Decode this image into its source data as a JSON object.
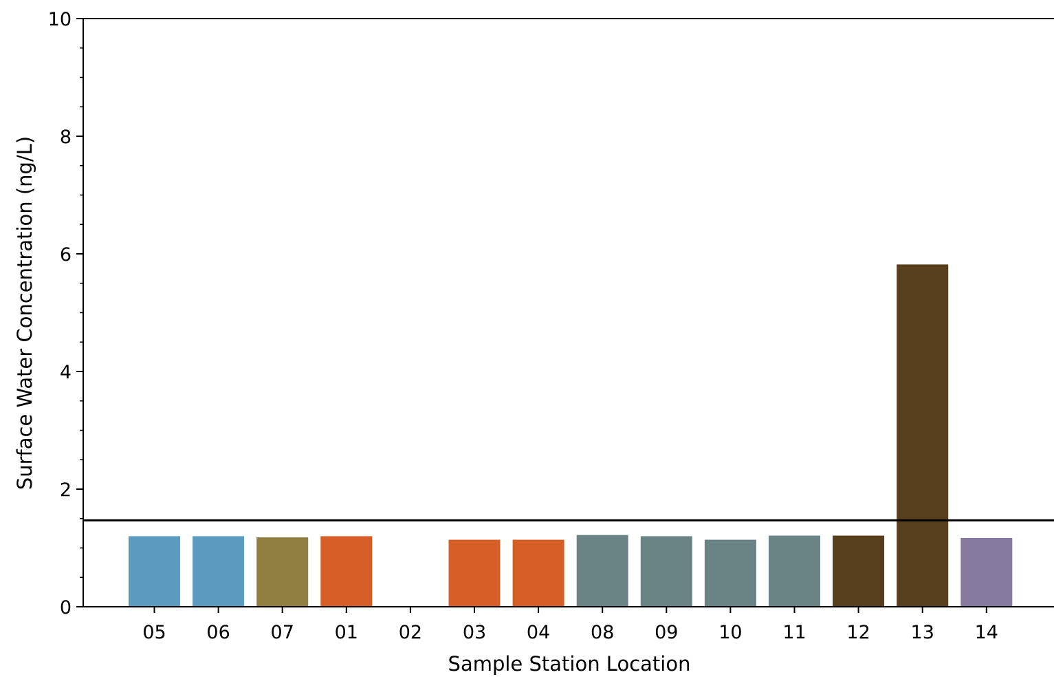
{
  "chart_data": {
    "type": "bar",
    "title": "",
    "xlabel": "Sample Station Location",
    "ylabel": "Surface Water Concentration (ng/L)",
    "ylim": [
      0,
      10
    ],
    "yticks": [
      0,
      2,
      4,
      6,
      8,
      10
    ],
    "y_minor_step": 0.5,
    "grid": false,
    "legend": "none",
    "reference_line": {
      "y": 1.47,
      "color": "#000000"
    },
    "categories": [
      "05",
      "06",
      "07",
      "01",
      "02",
      "03",
      "04",
      "08",
      "09",
      "10",
      "11",
      "12",
      "13",
      "14"
    ],
    "values": [
      1.2,
      1.2,
      1.18,
      1.2,
      0,
      1.14,
      1.14,
      1.22,
      1.2,
      1.14,
      1.21,
      1.21,
      5.82,
      1.17
    ],
    "colors": [
      "#5b9bbf",
      "#5b9bbf",
      "#917f3f",
      "#d65f28",
      "#d65f28",
      "#d65f28",
      "#d65f28",
      "#6a8486",
      "#6a8486",
      "#6a8486",
      "#6a8486",
      "#573e1d",
      "#573e1d",
      "#867a9e"
    ]
  }
}
